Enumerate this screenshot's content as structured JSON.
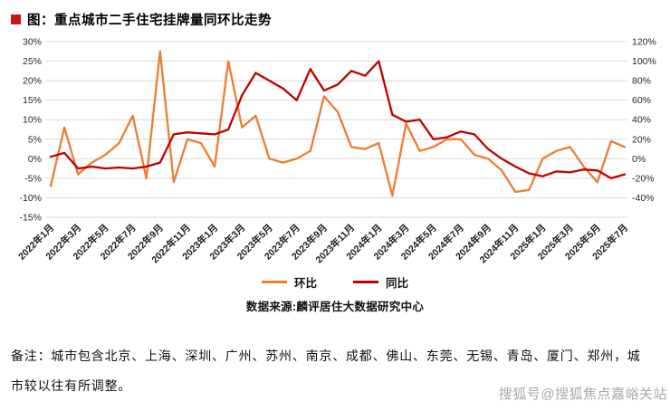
{
  "title": {
    "text": "图：重点城市二手住宅挂牌量同环比走势",
    "bullet_color": "#c81414"
  },
  "chart_data": {
    "type": "line",
    "title": "重点城市二手住宅挂牌量同环比走势",
    "x": [
      "2022年1月",
      "2022年2月",
      "2022年3月",
      "2022年4月",
      "2022年5月",
      "2022年6月",
      "2022年7月",
      "2022年8月",
      "2022年9月",
      "2022年10月",
      "2022年11月",
      "2022年12月",
      "2023年1月",
      "2023年2月",
      "2023年3月",
      "2023年4月",
      "2023年5月",
      "2023年6月",
      "2023年7月",
      "2023年8月",
      "2023年9月",
      "2023年10月",
      "2023年11月",
      "2023年12月",
      "2024年1月",
      "2024年2月",
      "2024年3月",
      "2024年4月",
      "2024年5月",
      "2024年6月",
      "2024年7月",
      "2024年8月",
      "2024年9月",
      "2024年10月",
      "2024年11月",
      "2024年12月",
      "2025年1月",
      "2025年2月",
      "2025年3月",
      "2025年4月",
      "2025年5月",
      "2025年6月",
      "2025年7月"
    ],
    "x_tick_every": 2,
    "x_tick_labels": [
      "2022年1月",
      "2022年3月",
      "2022年5月",
      "2022年7月",
      "2022年9月",
      "2022年11月",
      "2023年1月",
      "2023年3月",
      "2023年5月",
      "2023年7月",
      "2023年9月",
      "2023年11月",
      "2024年1月",
      "2024年3月",
      "2024年5月",
      "2024年7月",
      "2024年9月",
      "2024年11月",
      "2025年1月",
      "2025年3月",
      "2025年5月",
      "2025年7月"
    ],
    "series": [
      {
        "name": "环比",
        "axis": "left",
        "color": "#ED7D31",
        "values": [
          -7,
          8,
          -4,
          -1,
          1,
          4,
          11,
          -5,
          27.5,
          -6,
          5,
          4,
          -2,
          25,
          8,
          11,
          0,
          -1,
          0,
          2,
          16,
          12,
          3,
          2.5,
          4,
          -9.5,
          9,
          2,
          3,
          5,
          5,
          1,
          0,
          -3,
          -8.5,
          -8,
          0,
          2,
          3,
          -2,
          -6,
          4.5,
          3
        ]
      },
      {
        "name": "同比",
        "axis": "right",
        "color": "#C00000",
        "values": [
          2,
          6,
          -10,
          -8,
          -10,
          -9,
          -10,
          -8,
          -4,
          25,
          27,
          26,
          25,
          30,
          65,
          88,
          80,
          72,
          60,
          92,
          70,
          76,
          90,
          85,
          100,
          45,
          38,
          40,
          20,
          22,
          28,
          25,
          10,
          0,
          -8,
          -15,
          -18,
          -13,
          -14,
          -11,
          -12,
          -20,
          -16
        ]
      }
    ],
    "left_axis": {
      "max": 30,
      "min": -15,
      "step": 5,
      "format": "percent"
    },
    "right_axis": {
      "max": 120,
      "min": -40,
      "step": 20,
      "format": "percent"
    },
    "grid": true,
    "legend_position": "bottom",
    "source": "数据来源:麟评居住大数据研究中心"
  },
  "footer": {
    "note": "备注：城市包含北京、上海、深圳、广州、苏州、南京、成都、佛山、东莞、无锡、青岛、厦门、郑州，城市较以往有所调整。"
  },
  "watermark": {
    "text": "搜狐号@搜狐焦点嘉峪关站"
  }
}
